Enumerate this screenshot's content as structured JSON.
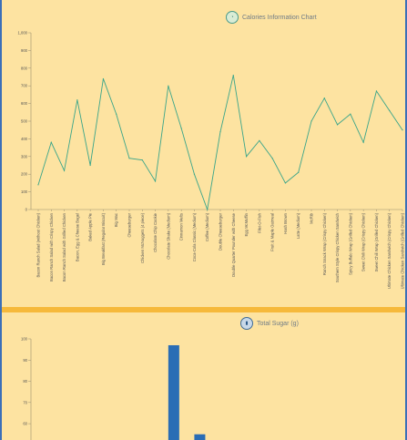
{
  "chart_data": [
    {
      "type": "line",
      "title": "Calories Information Chart",
      "icon": "pie-chart-icon",
      "line_color": "#3aa58a",
      "ylim": [
        0,
        1000
      ],
      "yticks": [
        "0",
        "100",
        "200",
        "300",
        "400",
        "500",
        "600",
        "700",
        "800",
        "900",
        "1,000"
      ],
      "categories": [
        "Bacon Ranch Salad (without Chicken)",
        "Bacon Ranch Salad with Crispy Chicken",
        "Bacon Ranch Salad with Grilled Chicken",
        "Bacon, Egg & Cheese Bagel",
        "Baked Apple Pie",
        "Big Breakfast (Regular Biscuit)",
        "Big Mac",
        "Cheeseburger",
        "Chicken McNuggets (4 piece)",
        "Chocolate Chip Cookie",
        "Chocolate Shake (Medium)",
        "Cinnamon Melts",
        "Coca-Cola Classic (Medium)",
        "Coffee (Medium)",
        "Double Cheeseburger",
        "Double Quarter Pounder with Cheese",
        "Egg McMuffin",
        "Filet-O-Fish",
        "Fruit & Maple Oatmeal",
        "Hash Brown",
        "Latte (Medium)",
        "McRib",
        "Ranch Snack Wrap (Crispy Chicken)",
        "Southern Style Crispy Chicken Sandwich",
        "Spicy Buffalo Wrap (Grilled Chicken)",
        "Sweet Chili Wrap (Crispy Chicken)",
        "Sweet Chili Wrap (Grilled Chicken)",
        "Ultimate Chicken Sandwich (Crispy Chicken)",
        "Ultimate Chicken Sandwich (Grilled Chicken)"
      ],
      "values": [
        140,
        380,
        220,
        620,
        250,
        740,
        540,
        290,
        280,
        160,
        700,
        460,
        200,
        0,
        440,
        760,
        300,
        390,
        290,
        150,
        210,
        500,
        630,
        480,
        540,
        380,
        670,
        560,
        450
      ]
    },
    {
      "type": "bar",
      "title": "Total Sugar (g)",
      "icon": "bar-chart-icon",
      "bar_color": "#2a6db5",
      "ylim": [
        45,
        100
      ],
      "yticks": [
        "50",
        "60",
        "70",
        "80",
        "90",
        "100"
      ],
      "values": [
        {
          "index": 10,
          "value": 97
        },
        {
          "index": 12,
          "value": 55
        }
      ]
    }
  ]
}
